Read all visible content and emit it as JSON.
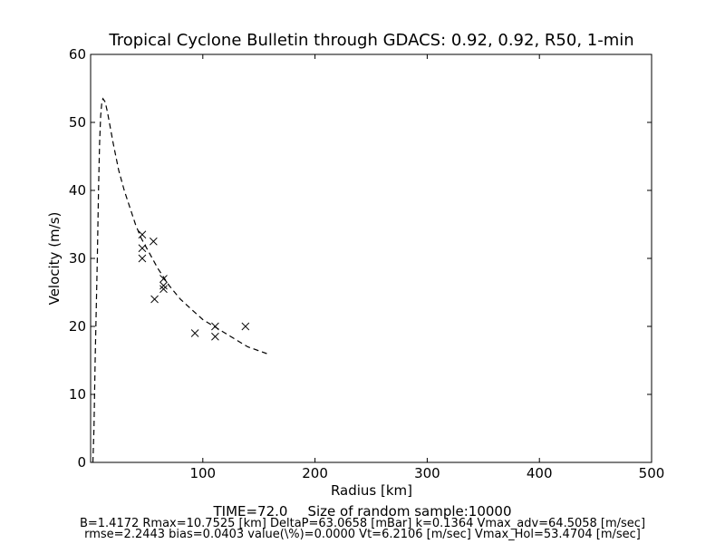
{
  "chart_data": {
    "type": "scatter",
    "title": "Tropical Cyclone Bulletin through GDACS: 0.92, 0.92, R50, 1-min",
    "xlabel": "Radius [km]",
    "ylabel": "Velocity (m/s)",
    "xlim": [
      0,
      500
    ],
    "ylim": [
      0,
      60
    ],
    "xticks": [
      100,
      200,
      300,
      400,
      500
    ],
    "yticks": [
      0,
      10,
      20,
      30,
      40,
      50,
      60
    ],
    "grid": false,
    "legend": "none",
    "series": [
      {
        "kind": "observations",
        "marker": "x",
        "points": [
          [
            46,
            33.5
          ],
          [
            46,
            31.5
          ],
          [
            46,
            30
          ],
          [
            56,
            32.5
          ],
          [
            57,
            24
          ],
          [
            65,
            27
          ],
          [
            65,
            26
          ],
          [
            65,
            25.5
          ],
          [
            93,
            19
          ],
          [
            111,
            20
          ],
          [
            111,
            18.5
          ],
          [
            138,
            20
          ]
        ]
      },
      {
        "kind": "model-fit",
        "style": "dashed",
        "points": [
          [
            2,
            0
          ],
          [
            3,
            5
          ],
          [
            4,
            15
          ],
          [
            6,
            30
          ],
          [
            7,
            40
          ],
          [
            8,
            47
          ],
          [
            9,
            51
          ],
          [
            10,
            53
          ],
          [
            11,
            53.5
          ],
          [
            13,
            53
          ],
          [
            15,
            51.5
          ],
          [
            20,
            47
          ],
          [
            25,
            43
          ],
          [
            30,
            40
          ],
          [
            35,
            37.5
          ],
          [
            40,
            35
          ],
          [
            45,
            33
          ],
          [
            50,
            31.5
          ],
          [
            60,
            28.5
          ],
          [
            70,
            26
          ],
          [
            80,
            24
          ],
          [
            90,
            22.5
          ],
          [
            100,
            21
          ],
          [
            110,
            20
          ],
          [
            120,
            19
          ],
          [
            130,
            18
          ],
          [
            140,
            17
          ],
          [
            157,
            16
          ]
        ]
      }
    ],
    "footer": {
      "line1_time": "TIME=72.0",
      "line1_sample": "Size of random sample:10000",
      "line2": "B=1.4172 Rmax=10.7525 [km]  DeltaP=63.0658 [mBar] k=0.1364 Vmax_adv=64.5058 [m/sec]",
      "line3": "rmse=2.2443 bias=0.0403 value(\\%)=0.0000 Vt=6.2106 [m/sec] Vmax_Hol=53.4704 [m/sec]"
    }
  }
}
